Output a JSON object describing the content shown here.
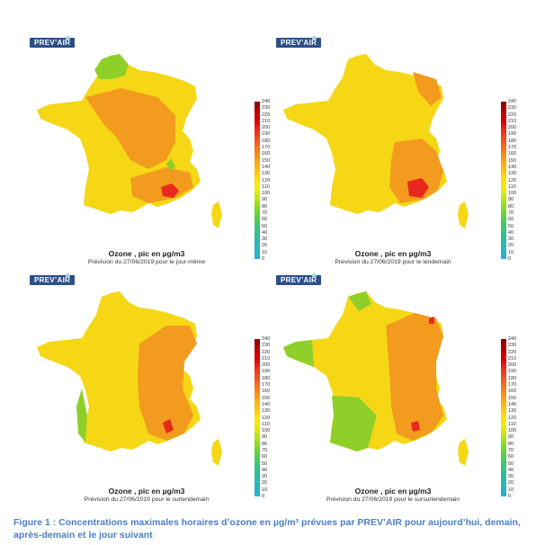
{
  "logo_text": "PREV’AIR",
  "scale_values": [
    "240",
    "230",
    "220",
    "210",
    "200",
    "190",
    "180",
    "170",
    "160",
    "150",
    "140",
    "130",
    "120",
    "110",
    "100",
    "90",
    "80",
    "70",
    "60",
    "50",
    "40",
    "30",
    "20",
    "10",
    "0"
  ],
  "scale_colors": [
    "#8b0000",
    "#a80000",
    "#c40000",
    "#d90000",
    "#e8201a",
    "#ee3b20",
    "#f25522",
    "#f46f20",
    "#f7891c",
    "#f9a21a",
    "#fbb916",
    "#fccd12",
    "#fde010",
    "#f3ea10",
    "#d6ea14",
    "#b4e41c",
    "#8cdb28",
    "#6dd43a",
    "#52cc55",
    "#3ec672",
    "#34c08c",
    "#2fbba2",
    "#2db7b5",
    "#2bb4c4",
    "#2ab0d0"
  ],
  "map_colors": {
    "high": "#e8281c",
    "orange": "#f39b1e",
    "yellow": "#f5d715",
    "green": "#8fcf2a",
    "ocean": "#ffffff"
  },
  "panels": [
    {
      "title": "Ozone , pic en µg/m3",
      "subtitle": "Prévision du 27/06/2019 pour le jour-même"
    },
    {
      "title": "Ozone , pic en µg/m3",
      "subtitle": "Prévision du 27/06/2019 pour le lendemain"
    },
    {
      "title": "Ozone , pic en µg/m3",
      "subtitle": "Prévision du 27/06/2019 pour le surlendemain"
    },
    {
      "title": "Ozone , pic en µg/m3",
      "subtitle": "Prévision du 27/06/2019 pour le sursurlendemain"
    }
  ],
  "caption": "Figure 1 : Concentrations maximales horaires d’ozone en µg/m³ prévues par PREV’AIR pour aujourd’hui, demain, après-demain et le jour suivant"
}
